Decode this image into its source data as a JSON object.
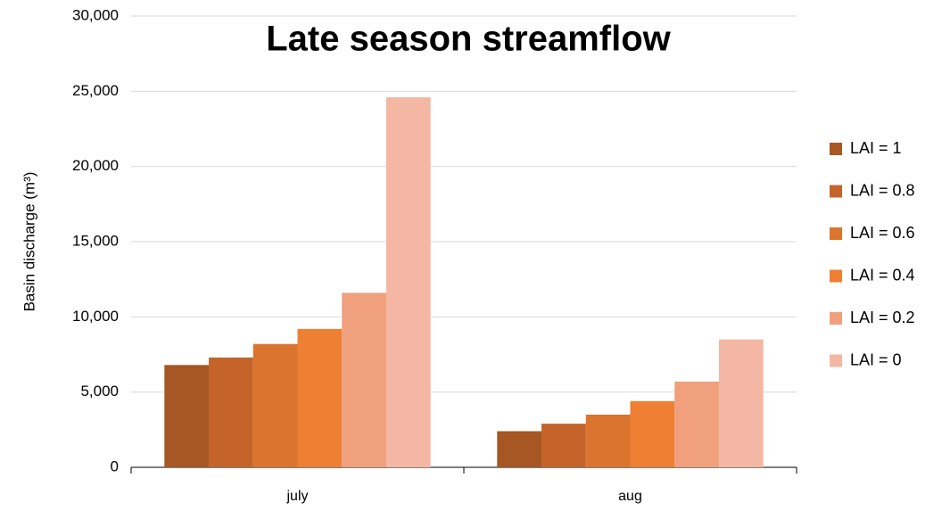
{
  "chart_data": {
    "type": "bar",
    "title": "Late season streamflow",
    "y_label": "Basin discharge (m³)",
    "categories": [
      "july",
      "aug"
    ],
    "series": [
      {
        "name": "LAI = 1",
        "color": "#a65723",
        "values": [
          6800,
          2400
        ]
      },
      {
        "name": "LAI = 0.8",
        "color": "#c4642b",
        "values": [
          7300,
          2900
        ]
      },
      {
        "name": "LAI = 0.6",
        "color": "#da742f",
        "values": [
          8200,
          3500
        ]
      },
      {
        "name": "LAI = 0.4",
        "color": "#ee7f33",
        "values": [
          9200,
          4400
        ]
      },
      {
        "name": "LAI = 0.2",
        "color": "#f0a07c",
        "values": [
          11600,
          5700
        ]
      },
      {
        "name": "LAI = 0",
        "color": "#f4b7a3",
        "values": [
          24600,
          8500
        ]
      }
    ],
    "ylim": [
      0,
      30000
    ],
    "yticks": [
      0,
      {
        "value": 5000,
        "label": "5,000"
      },
      {
        "value": 10000,
        "label": "10,000"
      },
      {
        "value": 15000,
        "label": "15,000"
      },
      {
        "value": 20000,
        "label": "20,000"
      },
      {
        "value": 25000,
        "label": "25,000"
      },
      {
        "value": 30000,
        "label": "30,000"
      }
    ],
    "grid": true
  }
}
